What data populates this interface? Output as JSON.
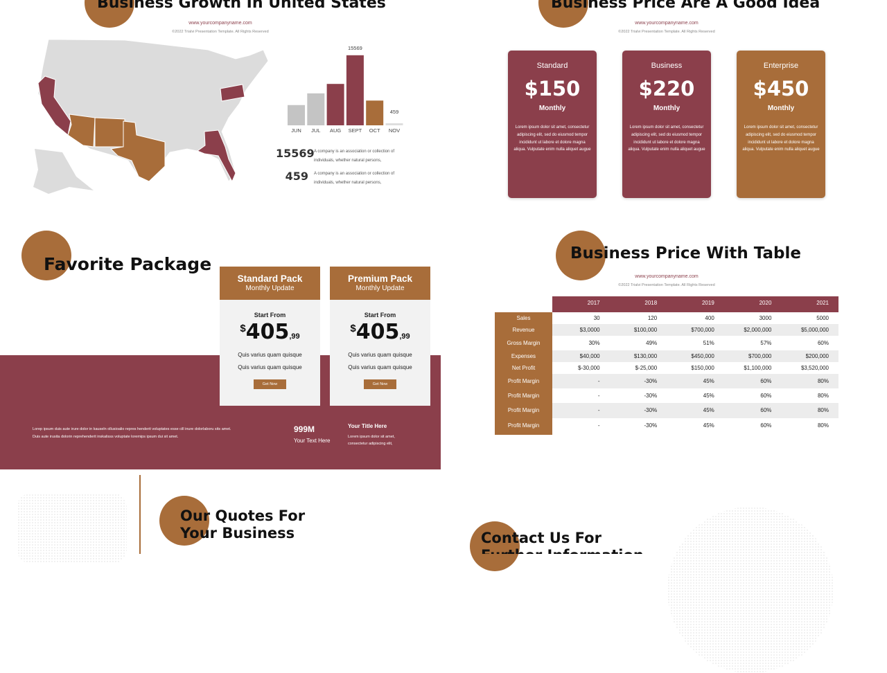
{
  "growth": {
    "title": "Business Growth In United States",
    "website": "www.yourcompanyname.com",
    "copyright": "©2022 Trialvi Presentation Template.  All Rights Reserved",
    "stats": [
      {
        "lines": [
          "A company is an association or collection of",
          "individuals, whether natural persons,"
        ]
      },
      {
        "lines": [
          "A company is an association or collection of",
          "individuals, whether natural persons,"
        ]
      }
    ]
  },
  "chart_data": {
    "type": "bar",
    "categories": [
      "JUN",
      "JUL",
      "AUG",
      "SEPT",
      "OCT",
      "NOV"
    ],
    "values": [
      4500,
      7100,
      9200,
      15569,
      5500,
      459
    ],
    "colors": [
      "#c4c4c4",
      "#c4c4c4",
      "#8b3f4b",
      "#8b3f4b",
      "#a86d3a",
      "#dedede"
    ],
    "ylim": [
      0,
      16000
    ]
  },
  "pricing": {
    "title": "Business Price Are A Good Idea",
    "website": "www.yourcompanyname.com",
    "copyright": "©2022 Trialvi Presentation Template.  All Rights Reserved",
    "plans": [
      {
        "name": "Standard",
        "price": "$150",
        "period": "Monthly",
        "description": "Lorem ipsum dolor sit amet, consectetur adipiscing elit, sed do eiusmod tempor incididunt ut labore et dolore magna aliqua. Vulputate enim nulla aliquet augue"
      },
      {
        "name": "Business",
        "price": "$220",
        "period": "Monthly",
        "description": "Lorem ipsum dolor sit amet, consectetur adipiscing elit, sed do eiusmod tempor incididunt ut labore et dolore magna aliqua. Vulputate enim nulla aliquet augue"
      },
      {
        "name": "Enterprise",
        "price": "$450",
        "period": "Monthly",
        "description": "Lorem ipsum dolor sit amet, consectetur adipiscing elit, sed do eiusmod tempor incididunt ut labore et dolore magna aliqua. Vulputate enim nulla aliquet augue"
      }
    ]
  },
  "package": {
    "title": "Favorite Package",
    "cards": [
      {
        "name": "Standard Pack",
        "subtitle": "Monthly Update",
        "start_label": "Start From",
        "currency": "$",
        "whole": "405",
        "cents": ",99",
        "features": [
          "Quis varius quam quisque",
          "Quis varius quam quisque"
        ],
        "button": "Get Now"
      },
      {
        "name": "Premium Pack",
        "subtitle": "Monthly Update",
        "start_label": "Start From",
        "currency": "$",
        "whole": "405",
        "cents": ",99",
        "features": [
          "Quis varius quam quisque",
          "Quis varius quam quisque"
        ],
        "button": "Get Now"
      }
    ],
    "description_lines": [
      "Lorep  ipsum duis aute irure dolor in kauseln ollusioalio repres henderit voluptates esse cill inure dolorlaboru sits amet.",
      "Duis aute irusita dolorin reprehenderit inskalisss voluptate loremips ipsum dui sit amet."
    ],
    "stat": "999M",
    "stat_caption": "Your Text Here",
    "side_title": "Your Title Here",
    "side_lines": [
      "Lorem ipsum dolor sit amet,",
      "consectetur adipiscing elit,"
    ]
  },
  "table": {
    "title": "Business Price With Table",
    "website": "www.yourcompanyname.com",
    "copyright": "©2022 Trialvi Presentation Template.  All Rights Reserved",
    "columns": [
      "2017",
      "2018",
      "2019",
      "2020",
      "2021"
    ],
    "rows": [
      {
        "label": "Sales",
        "cells": [
          "30",
          "120",
          "400",
          "3000",
          "5000"
        ]
      },
      {
        "label": "Revenue",
        "cells": [
          "$3,0000",
          "$100,000",
          "$700,000",
          "$2,000,000",
          "$5,000,000"
        ]
      },
      {
        "label": "Gross Margin",
        "cells": [
          "30%",
          "49%",
          "51%",
          "57%",
          "60%"
        ]
      },
      {
        "label": "Expenses",
        "cells": [
          "$40,000",
          "$130,000",
          "$450,000",
          "$700,000",
          "$200,000"
        ]
      },
      {
        "label": "Net Profit",
        "cells": [
          "$-30,000",
          "$-25,000",
          "$150,000",
          "$1,100,000",
          "$3,520,000"
        ]
      },
      {
        "label": "Profit Margin",
        "cells": [
          "-",
          "-30%",
          "45%",
          "60%",
          "80%"
        ]
      },
      {
        "label": "Profit Margin",
        "cells": [
          "-",
          "-30%",
          "45%",
          "60%",
          "80%"
        ]
      },
      {
        "label": "Profit Margin",
        "cells": [
          "-",
          "-30%",
          "45%",
          "60%",
          "80%"
        ]
      },
      {
        "label": "Profit Margin",
        "cells": [
          "-",
          "-30%",
          "45%",
          "60%",
          "80%"
        ]
      }
    ]
  },
  "quotes": {
    "title_lines": [
      "Our Quotes For",
      "Your Business"
    ]
  },
  "contact": {
    "title_lines": [
      "Contact Us For",
      "Further Information"
    ]
  }
}
